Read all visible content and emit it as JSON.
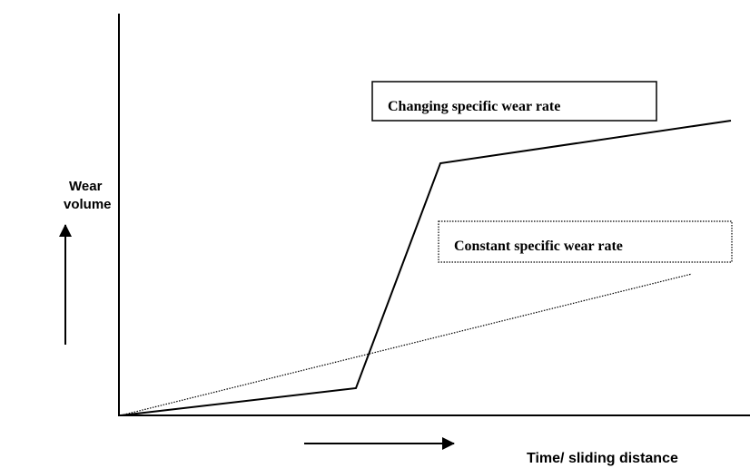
{
  "y_axis_label": [
    "Wear",
    "volume"
  ],
  "x_axis_label": "Time/ sliding distance",
  "annotations": [
    "Changing specific wear rate",
    "Constant specific wear rate"
  ]
}
